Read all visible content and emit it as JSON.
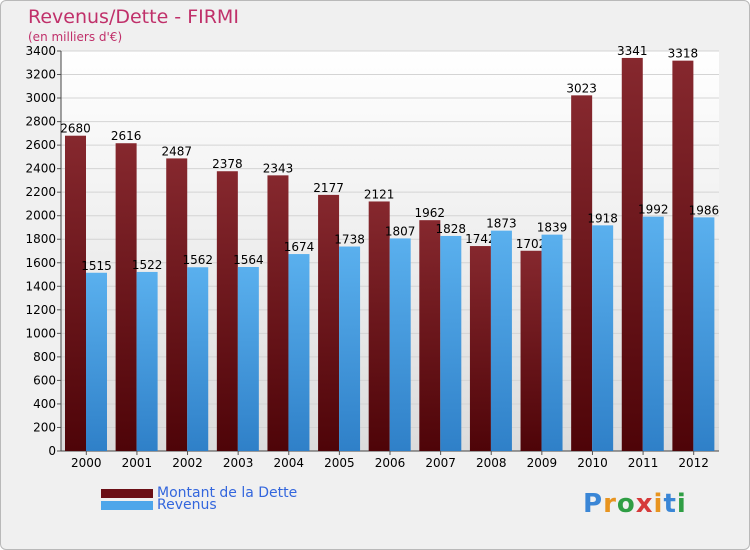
{
  "chart_data": {
    "type": "bar",
    "title": "Revenus/Dette - FIRMI",
    "subtitle": "(en milliers d'€)",
    "categories": [
      "2000",
      "2001",
      "2002",
      "2003",
      "2004",
      "2005",
      "2006",
      "2007",
      "2008",
      "2009",
      "2010",
      "2011",
      "2012"
    ],
    "series": [
      {
        "name": "Montant de la Dette",
        "color": "#7a1d24",
        "values": [
          2680,
          2616,
          2487,
          2378,
          2343,
          2177,
          2121,
          1962,
          1742,
          1702,
          3023,
          3341,
          3318
        ]
      },
      {
        "name": "Revenus",
        "color": "#4ea6ea",
        "values": [
          1515,
          1522,
          1562,
          1564,
          1674,
          1738,
          1807,
          1828,
          1873,
          1839,
          1918,
          1992,
          1986
        ]
      }
    ],
    "ylim": [
      0,
      3400
    ],
    "yticks": [
      0,
      200,
      400,
      600,
      800,
      1000,
      1200,
      1400,
      1600,
      1800,
      2000,
      2200,
      2400,
      2600,
      2800,
      3000,
      3200,
      3400
    ],
    "grid": true,
    "legend_position": "bottom-left",
    "data_labels": true
  },
  "logo": {
    "letters": [
      "P",
      "r",
      "o",
      "x",
      "i",
      "t",
      "i"
    ],
    "colors": [
      "#3a86d6",
      "#e8941f",
      "#2f9e44",
      "#d63a3a",
      "#e8941f",
      "#3a86d6",
      "#2f9e44"
    ]
  }
}
